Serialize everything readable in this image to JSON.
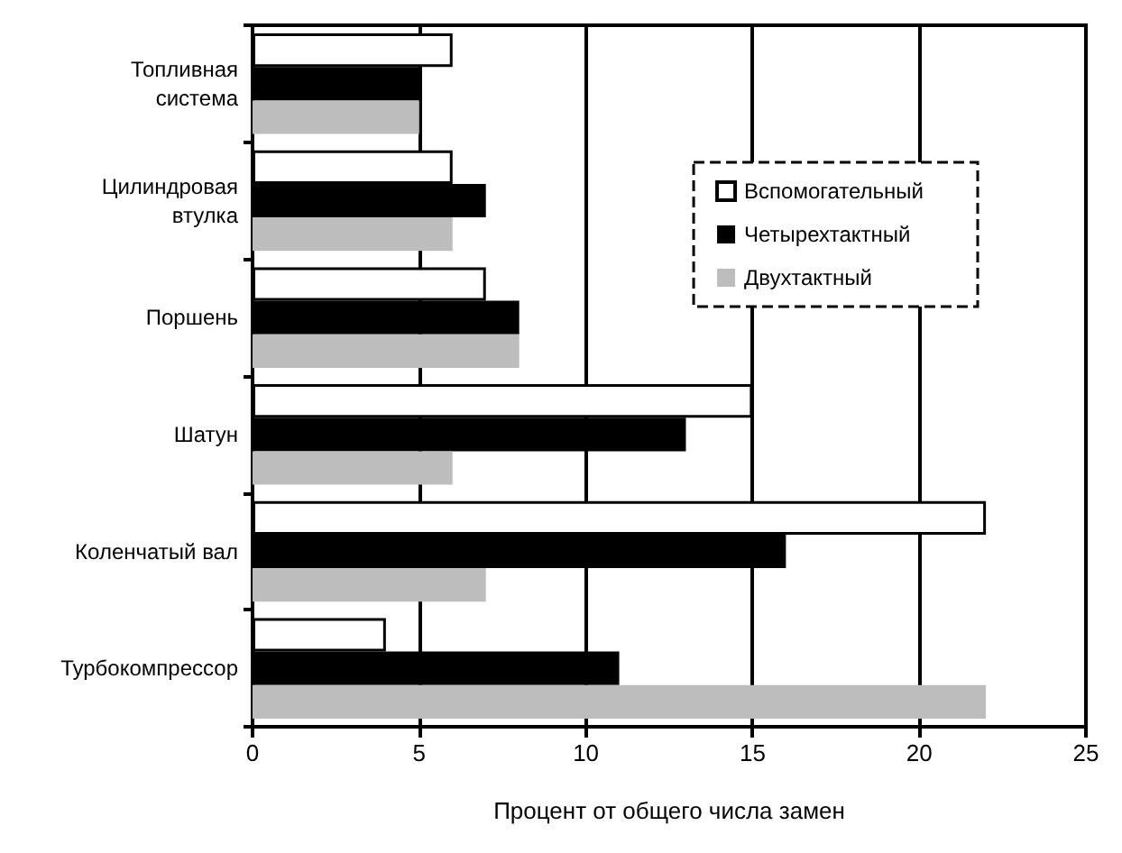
{
  "chart_data": {
    "type": "bar",
    "orientation": "horizontal",
    "xlabel": "Процент от общего числа замен",
    "categories": [
      "Топливная система",
      "Цилиндровая втулка",
      "Поршень",
      "Шатун",
      "Коленчатый вал",
      "Турбокомпрессор"
    ],
    "series": [
      {
        "name": "Вспомогательный",
        "color": "#ffffff",
        "values": [
          6,
          6,
          7,
          15,
          22,
          4
        ]
      },
      {
        "name": "Четырехтактный",
        "color": "#000000",
        "values": [
          5,
          7,
          8,
          13,
          16,
          11
        ]
      },
      {
        "name": "Двухтактный",
        "color": "#bdbdbd",
        "values": [
          5,
          6,
          8,
          6,
          7,
          22
        ]
      }
    ],
    "xlim": [
      0,
      25
    ],
    "xticks": [
      0,
      5,
      10,
      15,
      20,
      25
    ],
    "grid": "x",
    "legend": "top right"
  }
}
